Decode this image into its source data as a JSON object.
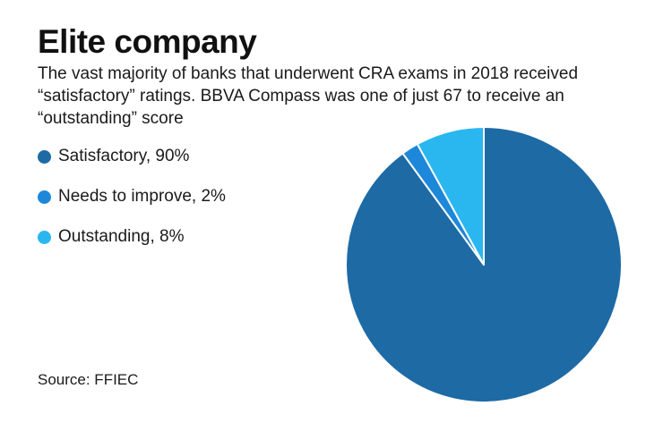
{
  "header": {
    "title": "Elite company",
    "subtitle": "The vast majority of banks that underwent CRA exams in 2018 received “satisfactory” ratings. BBVA Compass was one of just 67 to receive an “outstanding” score"
  },
  "legend": {
    "items": [
      {
        "label": "Satisfactory, 90%",
        "color": "#1d6aa5"
      },
      {
        "label": "Needs to improve, 2%",
        "color": "#1d88d9"
      },
      {
        "label": "Outstanding, 8%",
        "color": "#2ab7f0"
      }
    ]
  },
  "footer": {
    "source": "Source: FFIEC"
  },
  "chart_data": {
    "type": "pie",
    "title": "Elite company",
    "categories": [
      "Satisfactory",
      "Needs to improve",
      "Outstanding"
    ],
    "values": [
      90,
      2,
      8
    ],
    "unit": "%",
    "colors": [
      "#1d6aa5",
      "#1d88d9",
      "#2ab7f0"
    ],
    "start_angle_deg": 0,
    "direction": "clockwise",
    "legend_position": "left"
  }
}
